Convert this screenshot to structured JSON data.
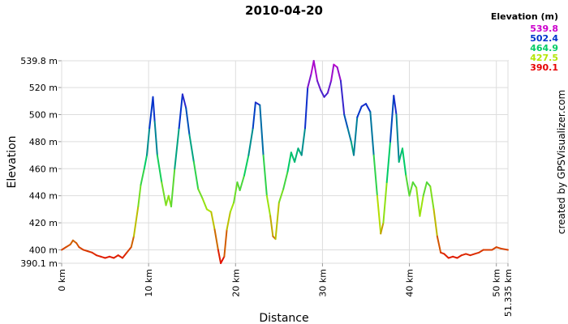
{
  "chart_data": {
    "type": "line",
    "title": "2010-04-20",
    "x_label": "Distance",
    "y_label": "Elevation",
    "credit": "created by GPSVisualizer.com",
    "legend_title": "Elevation (m)",
    "color_scale": [
      {
        "value": 539.8,
        "color": "#cc00cc"
      },
      {
        "value": 502.4,
        "color": "#0033cc"
      },
      {
        "value": 464.9,
        "color": "#00cc66"
      },
      {
        "value": 427.5,
        "color": "#b3e600"
      },
      {
        "value": 390.1,
        "color": "#e60000"
      }
    ],
    "xlim": [
      0,
      51.335
    ],
    "ylim": [
      390.1,
      539.8
    ],
    "xticks": [
      {
        "value": 0,
        "label": "0 km"
      },
      {
        "value": 10,
        "label": "10 km"
      },
      {
        "value": 20,
        "label": "20 km"
      },
      {
        "value": 30,
        "label": "30 km"
      },
      {
        "value": 40,
        "label": "40 km"
      },
      {
        "value": 50,
        "label": "50 km"
      },
      {
        "value": 51.335,
        "label": "51.335 km"
      }
    ],
    "yticks": [
      {
        "value": 390.1,
        "label": "390.1 m"
      },
      {
        "value": 400,
        "label": "400 m"
      },
      {
        "value": 420,
        "label": "420 m"
      },
      {
        "value": 440,
        "label": "440 m"
      },
      {
        "value": 460,
        "label": "460 m"
      },
      {
        "value": 480,
        "label": "480 m"
      },
      {
        "value": 500,
        "label": "500 m"
      },
      {
        "value": 520,
        "label": "520 m"
      },
      {
        "value": 539.8,
        "label": "539.8 m"
      }
    ],
    "grid": true,
    "x": [
      0,
      0.5,
      1,
      1.3,
      1.7,
      2,
      2.5,
      3,
      3.5,
      4,
      4.5,
      5,
      5.5,
      6,
      6.5,
      7,
      7.5,
      8,
      8.3,
      8.8,
      9.1,
      9.5,
      9.8,
      10.1,
      10.5,
      10.7,
      11,
      11.5,
      12,
      12.3,
      12.6,
      13,
      13.5,
      13.9,
      14.3,
      14.7,
      15.2,
      15.7,
      16.2,
      16.7,
      17.2,
      17.6,
      18,
      18.3,
      18.7,
      19,
      19.4,
      19.8,
      20.2,
      20.5,
      21,
      21.5,
      22,
      22.3,
      22.8,
      23.2,
      23.6,
      24,
      24.3,
      24.6,
      25,
      25.5,
      26,
      26.4,
      26.8,
      27.2,
      27.6,
      28,
      28.3,
      28.7,
      29,
      29.4,
      29.8,
      30.2,
      30.6,
      31,
      31.3,
      31.7,
      32.1,
      32.5,
      32.9,
      33.3,
      33.6,
      34,
      34.5,
      35,
      35.5,
      35.9,
      36.3,
      36.7,
      37,
      37.4,
      37.8,
      38.2,
      38.5,
      38.8,
      39.2,
      39.6,
      40,
      40.4,
      40.8,
      41.2,
      41.6,
      42,
      42.4,
      42.8,
      43.2,
      43.6,
      44,
      44.5,
      45,
      45.5,
      46,
      46.5,
      47,
      47.5,
      48,
      48.5,
      49,
      49.5,
      50,
      50.5,
      51.335
    ],
    "series": [
      {
        "name": "Elevation",
        "values": [
          400,
          402,
          404,
          407,
          405,
          402,
          400,
          399,
          398,
          396,
          395,
          394,
          395,
          394,
          396,
          394,
          398,
          402,
          410,
          432,
          448,
          460,
          470,
          490,
          513,
          495,
          470,
          450,
          433,
          440,
          432,
          460,
          490,
          515,
          505,
          485,
          465,
          445,
          438,
          430,
          428,
          415,
          400,
          390.1,
          395,
          415,
          428,
          435,
          450,
          444,
          455,
          470,
          490,
          509,
          507,
          470,
          440,
          425,
          410,
          408,
          435,
          445,
          458,
          472,
          465,
          475,
          470,
          490,
          520,
          530,
          539.8,
          525,
          518,
          513,
          516,
          525,
          537,
          535,
          525,
          500,
          490,
          480,
          470,
          498,
          506,
          508,
          502,
          470,
          440,
          412,
          420,
          450,
          480,
          514,
          500,
          465,
          475,
          455,
          440,
          450,
          446,
          425,
          440,
          450,
          447,
          430,
          410,
          398,
          397,
          394,
          395,
          394,
          396,
          397,
          396,
          397,
          398,
          400,
          400,
          400,
          402,
          401,
          400
        ]
      }
    ]
  }
}
